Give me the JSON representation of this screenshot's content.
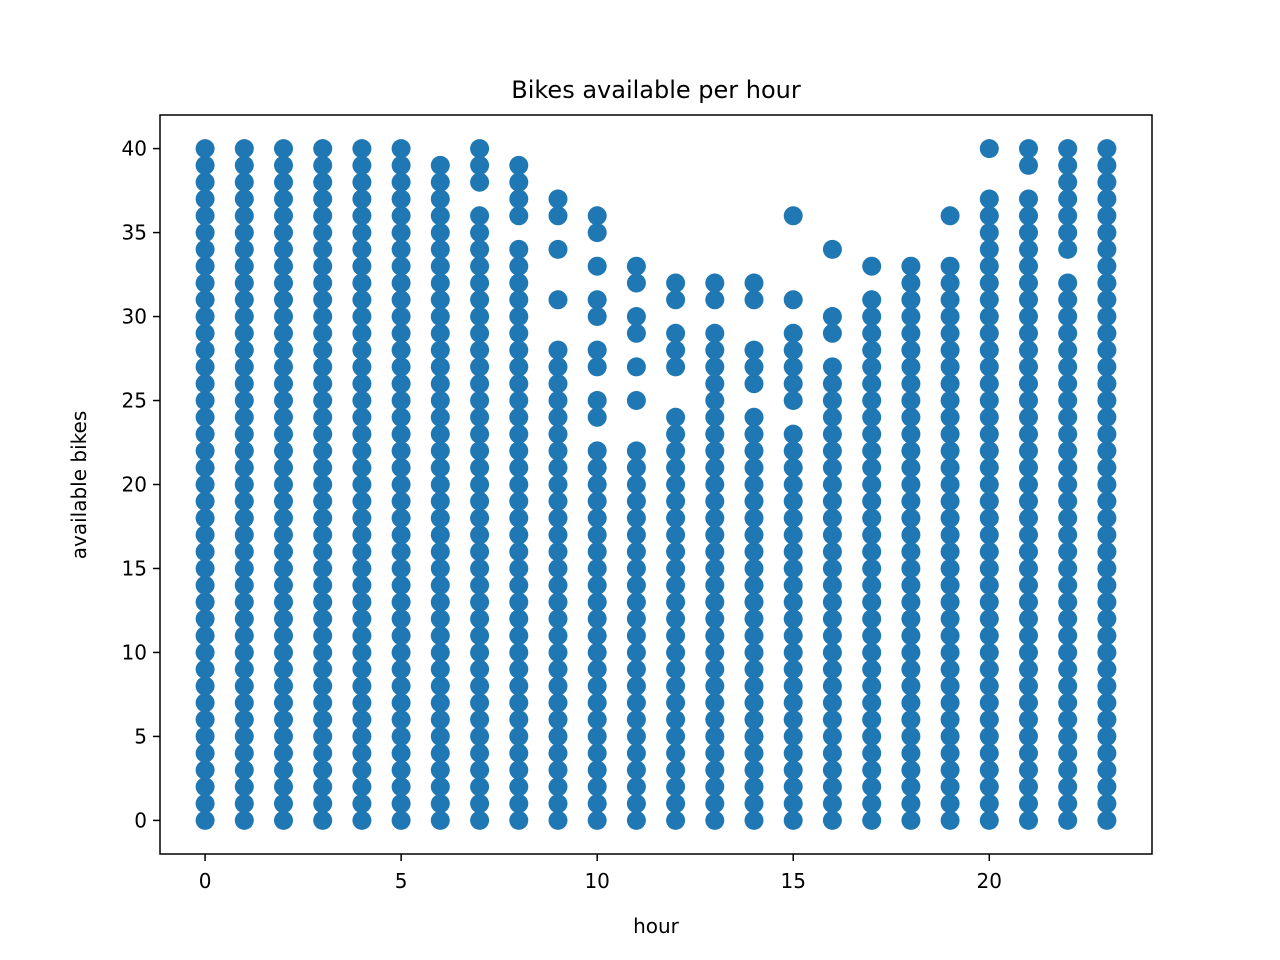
{
  "colors": {
    "marker": "#1f77b4",
    "axes": "#000000",
    "background": "#ffffff"
  },
  "chart_data": {
    "type": "scatter",
    "title": "Bikes available per hour",
    "xlabel": "hour",
    "ylabel": "available bikes",
    "xlim": [
      -1.15,
      24.15
    ],
    "ylim": [
      -2,
      42
    ],
    "xticks": [
      0,
      5,
      10,
      15,
      20
    ],
    "yticks": [
      0,
      5,
      10,
      15,
      20,
      25,
      30,
      35,
      40
    ],
    "grid": false,
    "legend": "none",
    "series": [
      {
        "points_by_hour": [
          {
            "x": 0,
            "y": [
              0,
              1,
              2,
              3,
              4,
              5,
              6,
              7,
              8,
              9,
              10,
              11,
              12,
              13,
              14,
              15,
              16,
              17,
              18,
              19,
              20,
              21,
              22,
              23,
              24,
              25,
              26,
              27,
              28,
              29,
              30,
              31,
              32,
              33,
              34,
              35,
              36,
              37,
              38,
              39,
              40
            ]
          },
          {
            "x": 1,
            "y": [
              0,
              1,
              2,
              3,
              4,
              5,
              6,
              7,
              8,
              9,
              10,
              11,
              12,
              13,
              14,
              15,
              16,
              17,
              18,
              19,
              20,
              21,
              22,
              23,
              24,
              25,
              26,
              27,
              28,
              29,
              30,
              31,
              32,
              33,
              34,
              35,
              36,
              37,
              38,
              39,
              40
            ]
          },
          {
            "x": 2,
            "y": [
              0,
              1,
              2,
              3,
              4,
              5,
              6,
              7,
              8,
              9,
              10,
              11,
              12,
              13,
              14,
              15,
              16,
              17,
              18,
              19,
              20,
              21,
              22,
              23,
              24,
              25,
              26,
              27,
              28,
              29,
              30,
              31,
              32,
              33,
              34,
              35,
              36,
              37,
              38,
              39,
              40
            ]
          },
          {
            "x": 3,
            "y": [
              0,
              1,
              2,
              3,
              4,
              5,
              6,
              7,
              8,
              9,
              10,
              11,
              12,
              13,
              14,
              15,
              16,
              17,
              18,
              19,
              20,
              21,
              22,
              23,
              24,
              25,
              26,
              27,
              28,
              29,
              30,
              31,
              32,
              33,
              34,
              35,
              36,
              37,
              38,
              39,
              40
            ]
          },
          {
            "x": 4,
            "y": [
              0,
              1,
              2,
              3,
              4,
              5,
              6,
              7,
              8,
              9,
              10,
              11,
              12,
              13,
              14,
              15,
              16,
              17,
              18,
              19,
              20,
              21,
              22,
              23,
              24,
              25,
              26,
              27,
              28,
              29,
              30,
              31,
              32,
              33,
              34,
              35,
              36,
              37,
              38,
              39,
              40
            ]
          },
          {
            "x": 5,
            "y": [
              0,
              1,
              2,
              3,
              4,
              5,
              6,
              7,
              8,
              9,
              10,
              11,
              12,
              13,
              14,
              15,
              16,
              17,
              18,
              19,
              20,
              21,
              22,
              23,
              24,
              25,
              26,
              27,
              28,
              29,
              30,
              31,
              32,
              33,
              34,
              35,
              36,
              37,
              38,
              39,
              40
            ]
          },
          {
            "x": 6,
            "y": [
              0,
              1,
              2,
              3,
              4,
              5,
              6,
              7,
              8,
              9,
              10,
              11,
              12,
              13,
              14,
              15,
              16,
              17,
              18,
              19,
              20,
              21,
              22,
              23,
              24,
              25,
              26,
              27,
              28,
              29,
              30,
              31,
              32,
              33,
              34,
              35,
              36,
              37,
              38,
              39
            ]
          },
          {
            "x": 7,
            "y": [
              0,
              1,
              2,
              3,
              4,
              5,
              6,
              7,
              8,
              9,
              10,
              11,
              12,
              13,
              14,
              15,
              16,
              17,
              18,
              19,
              20,
              21,
              22,
              23,
              24,
              25,
              26,
              27,
              28,
              29,
              30,
              31,
              32,
              33,
              34,
              35,
              36,
              38,
              39,
              40
            ]
          },
          {
            "x": 8,
            "y": [
              0,
              1,
              2,
              3,
              4,
              5,
              6,
              7,
              8,
              9,
              10,
              11,
              12,
              13,
              14,
              15,
              16,
              17,
              18,
              19,
              20,
              21,
              22,
              23,
              24,
              25,
              26,
              27,
              28,
              29,
              30,
              31,
              32,
              33,
              34,
              36,
              37,
              38,
              39
            ]
          },
          {
            "x": 9,
            "y": [
              0,
              1,
              2,
              3,
              4,
              5,
              6,
              7,
              8,
              9,
              10,
              11,
              12,
              13,
              14,
              15,
              16,
              17,
              18,
              19,
              20,
              21,
              22,
              23,
              24,
              25,
              26,
              27,
              28,
              31,
              34,
              36,
              37
            ]
          },
          {
            "x": 10,
            "y": [
              0,
              1,
              2,
              3,
              4,
              5,
              6,
              7,
              8,
              9,
              10,
              11,
              12,
              13,
              14,
              15,
              16,
              17,
              18,
              19,
              20,
              21,
              22,
              24,
              25,
              27,
              28,
              30,
              31,
              33,
              35,
              36
            ]
          },
          {
            "x": 11,
            "y": [
              0,
              1,
              2,
              3,
              4,
              5,
              6,
              7,
              8,
              9,
              10,
              11,
              12,
              13,
              14,
              15,
              16,
              17,
              18,
              19,
              20,
              21,
              22,
              25,
              27,
              29,
              30,
              32,
              33
            ]
          },
          {
            "x": 12,
            "y": [
              0,
              1,
              2,
              3,
              4,
              5,
              6,
              7,
              8,
              9,
              10,
              11,
              12,
              13,
              14,
              15,
              16,
              17,
              18,
              19,
              20,
              21,
              22,
              23,
              24,
              27,
              28,
              29,
              31,
              32
            ]
          },
          {
            "x": 13,
            "y": [
              0,
              1,
              2,
              3,
              4,
              5,
              6,
              7,
              8,
              9,
              10,
              11,
              12,
              13,
              14,
              15,
              16,
              17,
              18,
              19,
              20,
              21,
              22,
              23,
              24,
              25,
              26,
              27,
              28,
              29,
              31,
              32
            ]
          },
          {
            "x": 14,
            "y": [
              0,
              1,
              2,
              3,
              4,
              5,
              6,
              7,
              8,
              9,
              10,
              11,
              12,
              13,
              14,
              15,
              16,
              17,
              18,
              19,
              20,
              21,
              22,
              23,
              24,
              26,
              27,
              28,
              31,
              32
            ]
          },
          {
            "x": 15,
            "y": [
              0,
              1,
              2,
              3,
              4,
              5,
              6,
              7,
              8,
              9,
              10,
              11,
              12,
              13,
              14,
              15,
              16,
              17,
              18,
              19,
              20,
              21,
              22,
              23,
              25,
              26,
              27,
              28,
              29,
              31,
              36
            ]
          },
          {
            "x": 16,
            "y": [
              0,
              1,
              2,
              3,
              4,
              5,
              6,
              7,
              8,
              9,
              10,
              11,
              12,
              13,
              14,
              15,
              16,
              17,
              18,
              19,
              20,
              21,
              22,
              23,
              24,
              25,
              26,
              27,
              29,
              30,
              34
            ]
          },
          {
            "x": 17,
            "y": [
              0,
              1,
              2,
              3,
              4,
              5,
              6,
              7,
              8,
              9,
              10,
              11,
              12,
              13,
              14,
              15,
              16,
              17,
              18,
              19,
              20,
              21,
              22,
              23,
              24,
              25,
              26,
              27,
              28,
              29,
              30,
              31,
              33
            ]
          },
          {
            "x": 18,
            "y": [
              0,
              1,
              2,
              3,
              4,
              5,
              6,
              7,
              8,
              9,
              10,
              11,
              12,
              13,
              14,
              15,
              16,
              17,
              18,
              19,
              20,
              21,
              22,
              23,
              24,
              25,
              26,
              27,
              28,
              29,
              30,
              31,
              32,
              33
            ]
          },
          {
            "x": 19,
            "y": [
              0,
              1,
              2,
              3,
              4,
              5,
              6,
              7,
              8,
              9,
              10,
              11,
              12,
              13,
              14,
              15,
              16,
              17,
              18,
              19,
              20,
              21,
              22,
              23,
              24,
              25,
              26,
              27,
              28,
              29,
              30,
              31,
              32,
              33,
              36
            ]
          },
          {
            "x": 20,
            "y": [
              0,
              1,
              2,
              3,
              4,
              5,
              6,
              7,
              8,
              9,
              10,
              11,
              12,
              13,
              14,
              15,
              16,
              17,
              18,
              19,
              20,
              21,
              22,
              23,
              24,
              25,
              26,
              27,
              28,
              29,
              30,
              31,
              32,
              33,
              34,
              35,
              36,
              37,
              40
            ]
          },
          {
            "x": 21,
            "y": [
              0,
              1,
              2,
              3,
              4,
              5,
              6,
              7,
              8,
              9,
              10,
              11,
              12,
              13,
              14,
              15,
              16,
              17,
              18,
              19,
              20,
              21,
              22,
              23,
              24,
              25,
              26,
              27,
              28,
              29,
              30,
              31,
              32,
              33,
              34,
              35,
              36,
              37,
              39,
              40
            ]
          },
          {
            "x": 22,
            "y": [
              0,
              1,
              2,
              3,
              4,
              5,
              6,
              7,
              8,
              9,
              10,
              11,
              12,
              13,
              14,
              15,
              16,
              17,
              18,
              19,
              20,
              21,
              22,
              23,
              24,
              25,
              26,
              27,
              28,
              29,
              30,
              31,
              32,
              34,
              35,
              36,
              37,
              38,
              39,
              40
            ]
          },
          {
            "x": 23,
            "y": [
              0,
              1,
              2,
              3,
              4,
              5,
              6,
              7,
              8,
              9,
              10,
              11,
              12,
              13,
              14,
              15,
              16,
              17,
              18,
              19,
              20,
              21,
              22,
              23,
              24,
              25,
              26,
              27,
              28,
              29,
              30,
              31,
              32,
              33,
              34,
              35,
              36,
              37,
              38,
              39,
              40
            ]
          }
        ]
      }
    ]
  }
}
